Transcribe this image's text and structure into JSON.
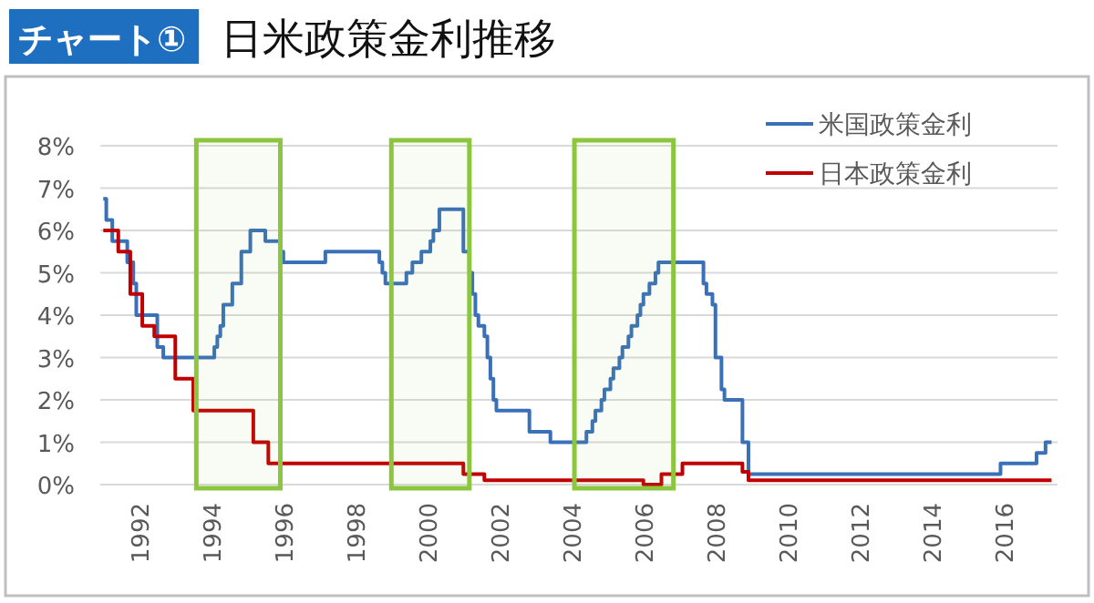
{
  "chart_data": {
    "type": "step",
    "title": "日米政策金利推移",
    "annotations": [
      "チャート①"
    ],
    "xlim": [
      "1990-12",
      "2017-07"
    ],
    "xticks": [
      "1992",
      "1994",
      "1996",
      "1998",
      "2000",
      "2002",
      "2004",
      "2006",
      "2008",
      "2010",
      "2012",
      "2014",
      "2016"
    ],
    "ylim": [
      0,
      8
    ],
    "yticks": [
      {
        "value": 0,
        "label": "0%"
      },
      {
        "value": 1,
        "label": "1%"
      },
      {
        "value": 2,
        "label": "2%"
      },
      {
        "value": 3,
        "label": "3%"
      },
      {
        "value": 4,
        "label": "4%"
      },
      {
        "value": 5,
        "label": "5%"
      },
      {
        "value": 6,
        "label": "6%"
      },
      {
        "value": 7,
        "label": "7%"
      },
      {
        "value": 8,
        "label": "8%"
      }
    ],
    "grid": "y",
    "legend": "top right",
    "series": [
      {
        "name": "米国政策金利",
        "color": "#3a70b8",
        "x": [
          "1991-01",
          "1991-02",
          "1991-04",
          "1991-09",
          "1991-11",
          "1991-12",
          "1992-07",
          "1992-09",
          "1994-02",
          "1994-03",
          "1994-04",
          "1994-05",
          "1994-08",
          "1994-11",
          "1995-02",
          "1995-07",
          "1995-12",
          "1996-01",
          "1997-03",
          "1998-09",
          "1998-10",
          "1998-11",
          "1999-06",
          "1999-08",
          "1999-11",
          "2000-02",
          "2000-03",
          "2000-05",
          "2001-01",
          "2001-03",
          "2001-04",
          "2001-05",
          "2001-06",
          "2001-08",
          "2001-09",
          "2001-10",
          "2001-11",
          "2001-12",
          "2002-11",
          "2003-06",
          "2004-06",
          "2004-08",
          "2004-09",
          "2004-11",
          "2004-12",
          "2005-02",
          "2005-03",
          "2005-05",
          "2005-06",
          "2005-08",
          "2005-09",
          "2005-11",
          "2005-12",
          "2006-01",
          "2006-03",
          "2006-05",
          "2006-06",
          "2007-09",
          "2007-10",
          "2007-12",
          "2008-01",
          "2008-03",
          "2008-04",
          "2008-10",
          "2008-12",
          "2015-12",
          "2016-12",
          "2017-03",
          "2017-05"
        ],
        "values": [
          6.75,
          6.25,
          5.75,
          5.25,
          4.75,
          4.0,
          3.25,
          3.0,
          3.25,
          3.5,
          3.75,
          4.25,
          4.75,
          5.5,
          6.0,
          5.75,
          5.5,
          5.25,
          5.5,
          5.25,
          5.0,
          4.75,
          5.0,
          5.25,
          5.5,
          5.75,
          6.0,
          6.5,
          5.5,
          5.0,
          4.5,
          4.0,
          3.75,
          3.5,
          3.0,
          2.5,
          2.0,
          1.75,
          1.25,
          1.0,
          1.25,
          1.5,
          1.75,
          2.0,
          2.25,
          2.5,
          2.75,
          3.0,
          3.25,
          3.5,
          3.75,
          4.0,
          4.25,
          4.5,
          4.75,
          5.0,
          5.25,
          4.75,
          4.5,
          4.25,
          3.0,
          2.25,
          2.0,
          1.0,
          0.25,
          0.5,
          0.75,
          1.0,
          1.0
        ]
      },
      {
        "name": "日本政策金利",
        "color": "#c00000",
        "x": [
          "1991-01",
          "1991-06",
          "1991-10",
          "1992-02",
          "1992-06",
          "1993-01",
          "1993-07",
          "1995-03",
          "1995-08",
          "2001-01",
          "2001-08",
          "2006-01",
          "2006-07",
          "2007-02",
          "2008-10",
          "2008-12",
          "2017-05"
        ],
        "values": [
          6.0,
          5.5,
          4.5,
          3.75,
          3.5,
          2.5,
          1.75,
          1.0,
          0.5,
          0.25,
          0.1,
          0.0,
          0.25,
          0.5,
          0.3,
          0.1,
          0.1
        ]
      }
    ],
    "bands": [
      {
        "axis": "x",
        "from": "1993-08",
        "to": "1995-12",
        "color": "#8cc63e"
      },
      {
        "axis": "x",
        "from": "1999-01",
        "to": "2001-03",
        "color": "#8cc63e"
      },
      {
        "axis": "x",
        "from": "2004-02",
        "to": "2006-11",
        "color": "#8cc63e"
      }
    ]
  }
}
